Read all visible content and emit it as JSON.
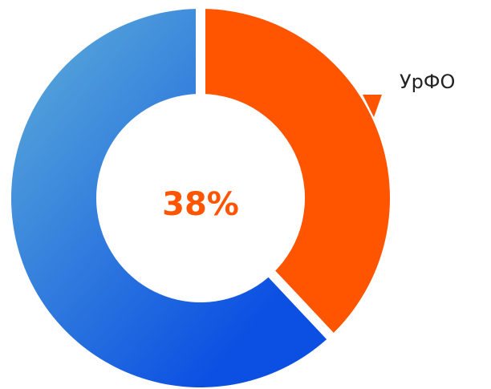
{
  "chart_data": {
    "type": "pie",
    "categories": [
      "УрФО",
      null
    ],
    "values": [
      38,
      62
    ],
    "value_labels": [
      "38%",
      null
    ],
    "colors": [
      "#ff5500",
      "#0b50e2"
    ],
    "donut": true
  }
}
